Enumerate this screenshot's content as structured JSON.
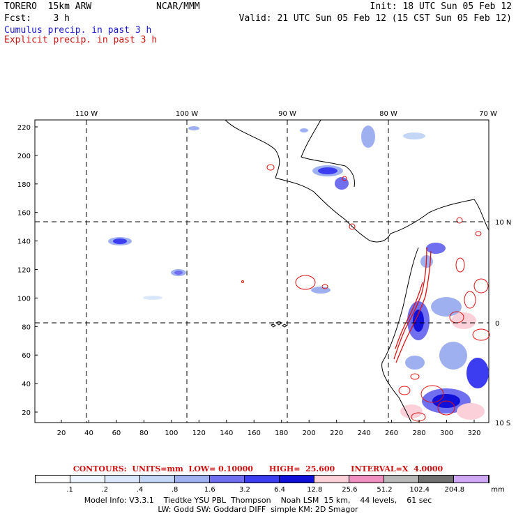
{
  "header": {
    "run_name": "TORERO  15km ARW",
    "center": "NCAR/MMM",
    "init": "Init: 18 UTC Sun 05 Feb 12",
    "fcst": "Fcst:    3 h",
    "valid": "Valid: 21 UTC Sun 05 Feb 12 (15 CST Sun 05 Feb 12)"
  },
  "legend": {
    "cumulus": "Cumulus precip. in past 3 h",
    "explicit": "Explicit precip. in past 3 h",
    "cumulus_color": "#1a1acc",
    "explicit_color": "#cc1111"
  },
  "axes": {
    "top_lon": [
      "110 W",
      "100 W",
      "90 W",
      "80 W",
      "70 W"
    ],
    "right_lat": [
      "10 N",
      "0",
      "10 S"
    ],
    "y_ticks": [
      "20",
      "40",
      "60",
      "80",
      "100",
      "120",
      "140",
      "160",
      "180",
      "200",
      "220"
    ],
    "x_ticks": [
      "20",
      "40",
      "60",
      "80",
      "100",
      "120",
      "140",
      "160",
      "180",
      "200",
      "220",
      "240",
      "260",
      "280",
      "300",
      "320"
    ]
  },
  "colorbar": {
    "labels": [
      ".1",
      ".2",
      ".4",
      ".8",
      "1.6",
      "3.2",
      "6.4",
      "12.8",
      "25.6",
      "51.2",
      "102.4",
      "204.8"
    ],
    "unit": "mm",
    "colors": [
      "#ffffff",
      "#eef5ff",
      "#dbe8fb",
      "#c3d6f6",
      "#9fb0f0",
      "#6f6ff0",
      "#3c3cf0",
      "#1010d8",
      "#fbd0d8",
      "#f090c0",
      "#b8b8b8",
      "#707070",
      "#d0a8f8"
    ]
  },
  "contours": {
    "text": "CONTOURS:  UNITS=mm  LOW= 0.10000      HIGH=  25.600      INTERVAL=X  4.0000"
  },
  "model_info": {
    "line1": "Model Info: V3.3.1    Tiedtke YSU PBL  Thompson    Noah LSM  15 km,    44 levels,    61 sec",
    "line2": "LW: Godd SW: Goddard DIFF  simple KM: 2D Smagor"
  }
}
